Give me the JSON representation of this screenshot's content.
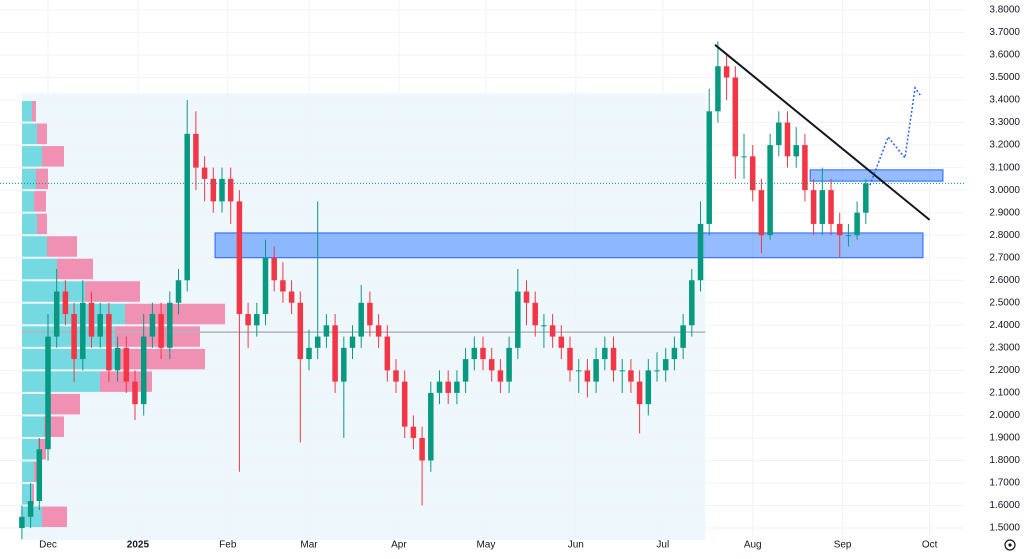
{
  "chart_data": {
    "type": "candlestick",
    "xlim": [
      -16.55,
      316.2
    ],
    "xticks": [
      {
        "value": 0,
        "label": "Dec"
      },
      {
        "value": 31,
        "label": "2025"
      },
      {
        "value": 62,
        "label": "Feb"
      },
      {
        "value": 90,
        "label": "Mar"
      },
      {
        "value": 121,
        "label": "Apr"
      },
      {
        "value": 151,
        "label": "May"
      },
      {
        "value": 182,
        "label": "Jun"
      },
      {
        "value": 212,
        "label": "Jul"
      },
      {
        "value": 243,
        "label": "Aug"
      },
      {
        "value": 274,
        "label": "Sep"
      },
      {
        "value": 304,
        "label": "Oct"
      }
    ],
    "ylim": [
      1.447,
      3.844
    ],
    "yticks": [
      {
        "value": 1.5,
        "label": "1.5000"
      },
      {
        "value": 1.6,
        "label": "1.6000"
      },
      {
        "value": 1.7,
        "label": "1.7000"
      },
      {
        "value": 1.8,
        "label": "1.8000"
      },
      {
        "value": 1.9,
        "label": "1.9000"
      },
      {
        "value": 2.0,
        "label": "2.0000"
      },
      {
        "value": 2.1,
        "label": "2.1000"
      },
      {
        "value": 2.2,
        "label": "2.2000"
      },
      {
        "value": 2.3,
        "label": "2.3000"
      },
      {
        "value": 2.4,
        "label": "2.4000"
      },
      {
        "value": 2.5,
        "label": "2.5000"
      },
      {
        "value": 2.6,
        "label": "2.6000"
      },
      {
        "value": 2.7,
        "label": "2.7000"
      },
      {
        "value": 2.8,
        "label": "2.8000"
      },
      {
        "value": 2.9,
        "label": "2.9000"
      },
      {
        "value": 3.0,
        "label": "3.0000"
      },
      {
        "value": 3.1,
        "label": "3.1000"
      },
      {
        "value": 3.2,
        "label": "3.2000"
      },
      {
        "value": 3.3,
        "label": "3.3000"
      },
      {
        "value": 3.4,
        "label": "3.4000"
      },
      {
        "value": 3.5,
        "label": "3.5000"
      },
      {
        "value": 3.6,
        "label": "3.6000"
      },
      {
        "value": 3.7,
        "label": "3.7000"
      },
      {
        "value": 3.8,
        "label": "3.8000"
      }
    ],
    "grid": true,
    "up_color": "#089981",
    "down_color": "#f23645",
    "candles": {
      "x": [
        -9,
        -6,
        -3,
        0,
        3,
        6,
        9,
        12,
        15,
        18,
        21,
        24,
        27,
        30,
        33,
        36,
        39,
        42,
        45,
        48,
        51,
        54,
        57,
        60,
        63,
        66,
        69,
        72,
        75,
        78,
        81,
        84,
        87,
        90,
        93,
        96,
        99,
        102,
        105,
        108,
        111,
        114,
        117,
        120,
        123,
        126,
        129,
        132,
        135,
        138,
        141,
        144,
        147,
        150,
        153,
        156,
        159,
        162,
        165,
        168,
        171,
        174,
        177,
        180,
        183,
        186,
        189,
        192,
        195,
        198,
        201,
        204,
        207,
        210,
        213,
        216,
        219,
        222,
        225,
        228,
        231,
        234,
        237,
        240,
        243,
        246,
        249,
        252,
        255,
        258,
        261,
        264,
        267,
        270,
        273,
        276,
        279,
        282
      ],
      "open": [
        1.5,
        1.55,
        1.62,
        1.85,
        2.35,
        2.55,
        2.45,
        2.25,
        2.5,
        2.35,
        2.45,
        2.2,
        2.3,
        2.15,
        2.05,
        2.35,
        2.45,
        2.3,
        2.5,
        2.6,
        3.25,
        3.1,
        3.05,
        2.95,
        3.05,
        2.95,
        2.45,
        2.4,
        2.45,
        2.7,
        2.6,
        2.55,
        2.5,
        2.25,
        2.3,
        2.35,
        2.4,
        2.15,
        2.3,
        2.35,
        2.5,
        2.4,
        2.35,
        2.2,
        2.15,
        1.95,
        1.9,
        1.8,
        2.1,
        2.15,
        2.1,
        2.15,
        2.25,
        2.3,
        2.25,
        2.2,
        2.15,
        2.3,
        2.55,
        2.5,
        2.4,
        2.4,
        2.35,
        2.3,
        2.2,
        2.2,
        2.15,
        2.25,
        2.3,
        2.2,
        2.2,
        2.15,
        2.05,
        2.2,
        2.2,
        2.25,
        2.3,
        2.4,
        2.6,
        2.85,
        3.35,
        3.55,
        3.5,
        3.15,
        3.15,
        3.0,
        2.8,
        3.2,
        3.3,
        3.15,
        3.2,
        3.0,
        2.85,
        3.0,
        2.85,
        2.8,
        2.8,
        2.9
      ],
      "high": [
        1.6,
        1.7,
        1.9,
        2.45,
        2.65,
        2.6,
        2.5,
        2.6,
        2.55,
        2.5,
        2.5,
        2.35,
        2.35,
        2.2,
        2.45,
        2.5,
        2.5,
        2.55,
        2.65,
        3.4,
        3.35,
        3.15,
        3.1,
        3.1,
        3.1,
        3.0,
        2.5,
        2.5,
        2.78,
        2.75,
        2.68,
        2.6,
        2.55,
        2.38,
        2.95,
        2.45,
        2.45,
        2.35,
        2.4,
        2.58,
        2.55,
        2.45,
        2.4,
        2.25,
        2.2,
        2.0,
        1.95,
        2.15,
        2.2,
        2.2,
        2.2,
        2.3,
        2.35,
        2.35,
        2.3,
        2.25,
        2.35,
        2.65,
        2.6,
        2.55,
        2.45,
        2.45,
        2.4,
        2.35,
        2.25,
        2.25,
        2.3,
        2.35,
        2.35,
        2.25,
        2.25,
        2.2,
        2.25,
        2.28,
        2.3,
        2.35,
        2.45,
        2.65,
        2.95,
        3.45,
        3.66,
        3.6,
        3.55,
        3.25,
        3.2,
        3.05,
        3.25,
        3.35,
        3.35,
        3.28,
        3.25,
        3.05,
        3.1,
        3.05,
        2.9,
        2.85,
        2.95,
        3.05
      ],
      "low": [
        1.45,
        1.5,
        1.58,
        1.8,
        2.3,
        2.4,
        2.15,
        2.2,
        2.3,
        2.3,
        2.15,
        2.15,
        2.1,
        1.98,
        2.0,
        2.3,
        2.25,
        2.25,
        2.45,
        2.55,
        3.0,
        2.95,
        2.9,
        2.9,
        2.85,
        1.75,
        2.3,
        2.35,
        2.4,
        2.55,
        2.5,
        2.45,
        1.88,
        2.2,
        2.25,
        2.3,
        2.1,
        1.9,
        2.25,
        2.3,
        2.35,
        2.3,
        2.15,
        2.1,
        1.9,
        1.85,
        1.6,
        1.75,
        2.05,
        2.05,
        2.05,
        2.1,
        2.2,
        2.2,
        2.15,
        2.1,
        2.1,
        2.25,
        2.4,
        2.35,
        2.3,
        2.3,
        2.25,
        2.15,
        2.1,
        2.08,
        2.1,
        2.2,
        2.15,
        2.1,
        2.1,
        1.92,
        2.0,
        2.15,
        2.15,
        2.2,
        2.25,
        2.35,
        2.55,
        2.8,
        3.3,
        3.4,
        3.05,
        3.05,
        2.95,
        2.72,
        2.78,
        3.15,
        3.1,
        3.1,
        2.95,
        2.8,
        2.8,
        2.8,
        2.7,
        2.75,
        2.78,
        2.85
      ],
      "close": [
        1.55,
        1.62,
        1.85,
        2.35,
        2.55,
        2.45,
        2.25,
        2.5,
        2.35,
        2.45,
        2.2,
        2.3,
        2.15,
        2.05,
        2.35,
        2.45,
        2.3,
        2.5,
        2.6,
        3.25,
        3.1,
        3.05,
        2.95,
        3.05,
        2.95,
        2.45,
        2.4,
        2.45,
        2.7,
        2.6,
        2.55,
        2.5,
        2.25,
        2.3,
        2.35,
        2.4,
        2.15,
        2.3,
        2.35,
        2.5,
        2.4,
        2.35,
        2.2,
        2.15,
        1.95,
        1.9,
        1.8,
        2.1,
        2.15,
        2.1,
        2.15,
        2.25,
        2.3,
        2.25,
        2.2,
        2.15,
        2.3,
        2.55,
        2.5,
        2.4,
        2.4,
        2.35,
        2.3,
        2.2,
        2.2,
        2.15,
        2.25,
        2.3,
        2.2,
        2.2,
        2.15,
        2.05,
        2.2,
        2.2,
        2.25,
        2.3,
        2.4,
        2.6,
        2.85,
        3.35,
        3.55,
        3.5,
        3.15,
        3.15,
        3.0,
        2.8,
        3.2,
        3.3,
        3.15,
        3.2,
        3.0,
        2.85,
        3.0,
        2.85,
        2.8,
        2.8,
        2.9,
        3.03
      ]
    },
    "volume_profile": {
      "up_color": "#5fd3dd",
      "down_color": "#f07fa6",
      "bins": [
        1.5,
        1.6,
        1.7,
        1.8,
        1.9,
        2.0,
        2.1,
        2.2,
        2.3,
        2.4,
        2.5,
        2.6,
        2.7,
        2.8,
        2.9,
        3.0,
        3.1,
        3.2,
        3.3,
        3.4
      ],
      "up": [
        20,
        10,
        12,
        16,
        22,
        28,
        78,
        93,
        93,
        103,
        63,
        35,
        25,
        15,
        12,
        14,
        20,
        15,
        10
      ],
      "down": [
        25,
        2,
        4,
        8,
        20,
        30,
        52,
        90,
        85,
        100,
        55,
        36,
        30,
        10,
        12,
        12,
        22,
        10,
        4
      ]
    },
    "highlight": {
      "x": [
        -9,
        226.6
      ],
      "top": 3.43,
      "color": "#eef8fc"
    },
    "poc_line": {
      "x": [
        -9,
        226.6
      ],
      "y": 2.37
    },
    "zones": [
      {
        "x": [
          57.6,
          301.7
        ],
        "y": [
          2.7,
          2.81
        ]
      },
      {
        "x": [
          262.8,
          308.6
        ],
        "y": [
          3.04,
          3.09
        ]
      }
    ],
    "trendline": {
      "x": [
        230,
        304
      ],
      "y": [
        3.645,
        2.868
      ]
    },
    "projection": {
      "x": [
        283.4,
        289.7,
        295.5,
        299,
        301
      ],
      "y": [
        3.022,
        3.236,
        3.143,
        3.454,
        3.418
      ]
    }
  }
}
